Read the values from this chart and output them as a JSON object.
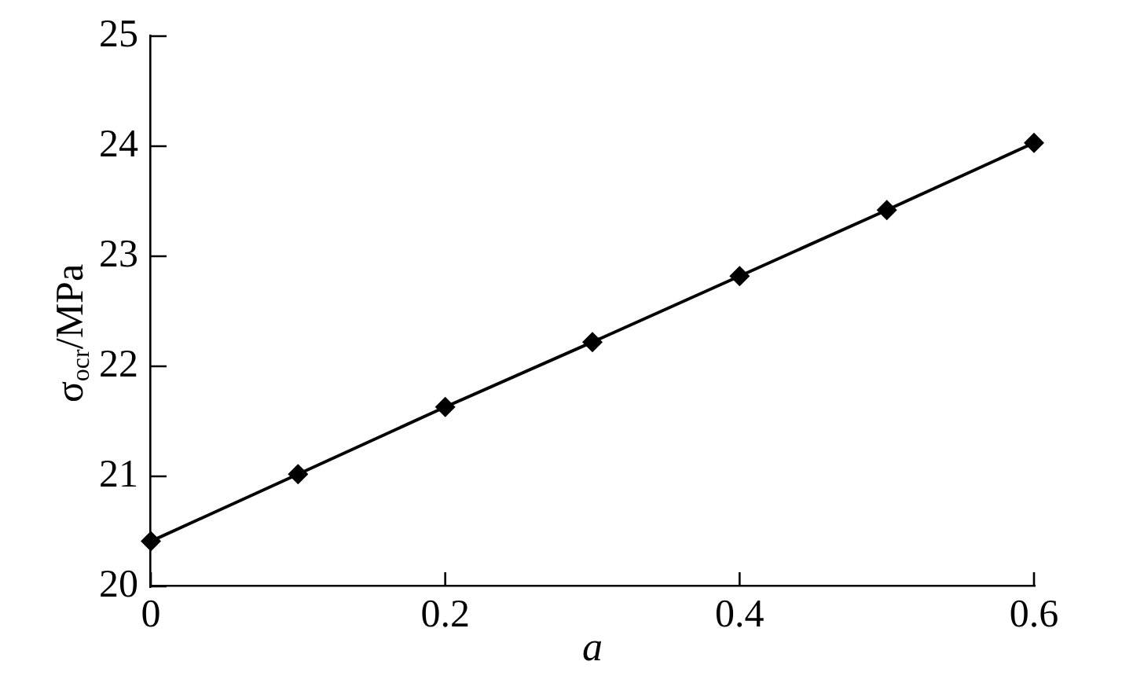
{
  "chart_data": {
    "type": "line",
    "xlabel": "a",
    "ylabel": "σ$_{ocr}$/MPa",
    "x": [
      0,
      0.1,
      0.2,
      0.3,
      0.4,
      0.5,
      0.6
    ],
    "series": [
      {
        "color": "#000000",
        "values": [
          20.41,
          21.02,
          21.63,
          22.22,
          22.82,
          23.42,
          24.03
        ]
      }
    ],
    "xlim": [
      0,
      0.6
    ],
    "ylim": [
      20,
      25
    ],
    "xticks": [
      0,
      0.2,
      0.4,
      0.6
    ],
    "yticks": [
      20,
      21,
      22,
      23,
      24,
      25
    ],
    "marker": "diamond",
    "line_style": "solid",
    "grid": false,
    "legend": false
  }
}
